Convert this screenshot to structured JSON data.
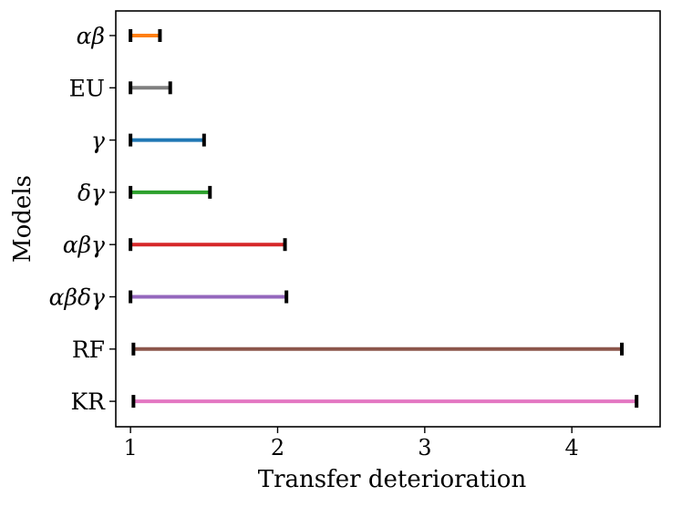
{
  "chart_data": {
    "type": "interval",
    "title": "",
    "xlabel": "Transfer deterioration",
    "ylabel": "Models",
    "xlim": [
      0.9,
      4.6
    ],
    "xticks": [
      1,
      2,
      3,
      4
    ],
    "grid": false,
    "legend": "none",
    "categories": [
      "αβ",
      "EU",
      "γ",
      "δγ",
      "αβγ",
      "αβδγ",
      "RF",
      "KR"
    ],
    "series": [
      {
        "category": "αβ",
        "start": 1.0,
        "end": 1.2,
        "color": "#ff7f0e"
      },
      {
        "category": "EU",
        "start": 1.0,
        "end": 1.27,
        "color": "#7f7f7f"
      },
      {
        "category": "γ",
        "start": 1.0,
        "end": 1.5,
        "color": "#1f77b4"
      },
      {
        "category": "δγ",
        "start": 1.0,
        "end": 1.54,
        "color": "#2ca02c"
      },
      {
        "category": "αβγ",
        "start": 1.0,
        "end": 2.05,
        "color": "#d62728"
      },
      {
        "category": "αβδγ",
        "start": 1.0,
        "end": 2.06,
        "color": "#9467bd"
      },
      {
        "category": "RF",
        "start": 1.02,
        "end": 4.34,
        "color": "#8c564b"
      },
      {
        "category": "KR",
        "start": 1.02,
        "end": 4.44,
        "color": "#e377c2"
      }
    ]
  }
}
